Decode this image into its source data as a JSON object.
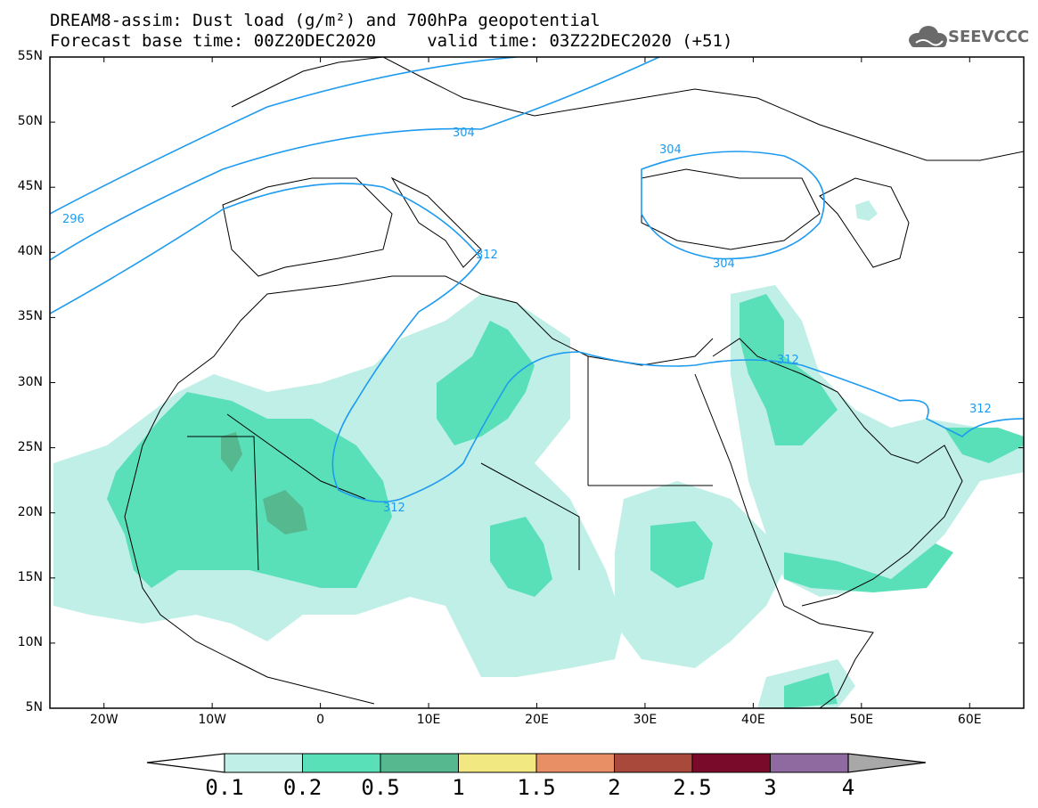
{
  "title": {
    "line1": "DREAM8-assim: Dust load (g/m²) and 700hPa geopotential",
    "line2": "Forecast base time: 00Z20DEC2020     valid time: 03Z22DEC2020 (+51)"
  },
  "logo": {
    "text": "SEEVCCC",
    "icon": "cloud-icon"
  },
  "map": {
    "lon_range": [
      -25,
      65
    ],
    "lat_range": [
      5,
      55
    ],
    "lat_labels": [
      "55N",
      "50N",
      "45N",
      "40N",
      "35N",
      "30N",
      "25N",
      "20N",
      "15N",
      "10N",
      "5N"
    ],
    "lon_labels": [
      "20W",
      "10W",
      "0",
      "10E",
      "20E",
      "30E",
      "40E",
      "50E",
      "60E"
    ],
    "contour_labels": [
      "296",
      "304",
      "304",
      "304",
      "312",
      "312",
      "312",
      "312"
    ],
    "contour_color": "#1e9bf0"
  },
  "colorbar": {
    "labels": [
      "0.1",
      "0.2",
      "0.5",
      "1",
      "1.5",
      "2",
      "2.5",
      "3",
      "4"
    ],
    "colors": [
      "#bfefe6",
      "#5ae0b9",
      "#56b88f",
      "#f2e882",
      "#e88f66",
      "#a9493c",
      "#7a0a2a",
      "#8e6aa0",
      "#a8a8a8"
    ]
  }
}
